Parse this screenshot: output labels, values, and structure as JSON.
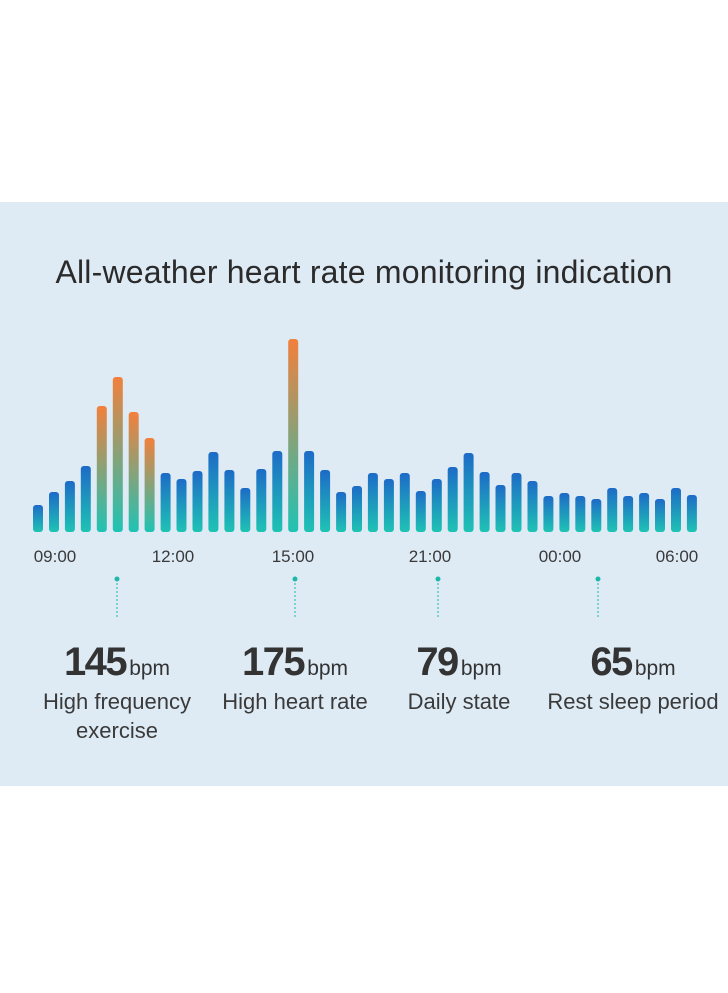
{
  "chart_data": {
    "type": "bar",
    "title": "All-weather heart rate monitoring indication",
    "x_tick_labels": [
      "09:00",
      "12:00",
      "15:00",
      "21:00",
      "00:00",
      "06:00"
    ],
    "values": [
      27,
      40,
      51,
      66,
      126,
      155,
      120,
      94,
      59,
      53,
      61,
      80,
      62,
      44,
      63,
      81,
      193,
      81,
      62,
      40,
      46,
      59,
      53,
      59,
      41,
      53,
      65,
      79,
      60,
      47,
      59,
      51,
      36,
      39,
      36,
      33,
      44,
      36,
      39,
      33,
      44,
      37
    ],
    "bar_colors": {
      "base": "#1fc3b4",
      "normal_top": "#1d6bc7",
      "high_top": "#f2803c"
    },
    "high_threshold": 90
  },
  "stats": [
    {
      "value": "145",
      "unit": "bpm",
      "label": "High frequency exercise"
    },
    {
      "value": "175",
      "unit": "bpm",
      "label": "High heart rate"
    },
    {
      "value": "79",
      "unit": "bpm",
      "label": "Daily state"
    },
    {
      "value": "65",
      "unit": "bpm",
      "label": "Rest sleep period"
    }
  ]
}
